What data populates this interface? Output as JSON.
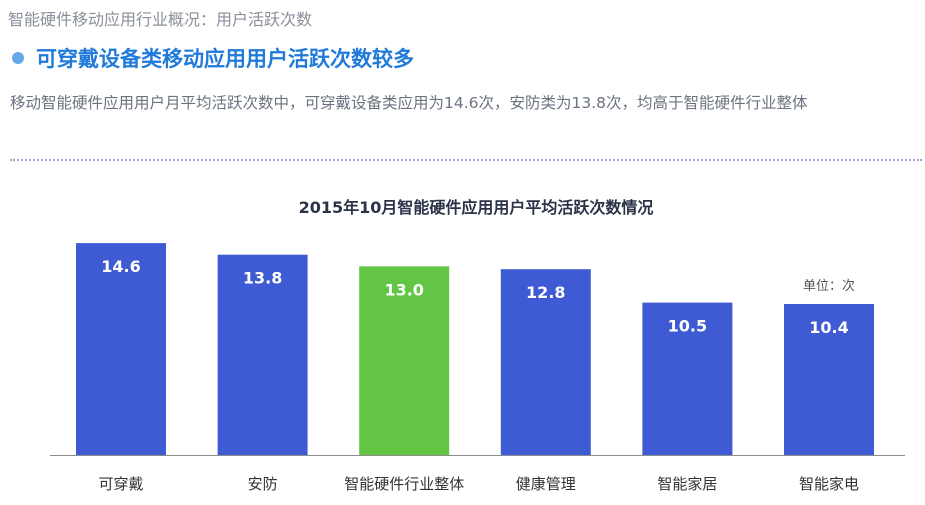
{
  "header": {
    "breadcrumb": "智能硬件移动应用行业概况：用户活跃次数",
    "headline": "可穿戴设备类移动应用用户活跃次数较多",
    "summary": "移动智能硬件应用用户月平均活跃次数中，可穿戴设备类应用为14.6次，安防类为13.8次，均高于智能硬件行业整体"
  },
  "colors": {
    "bar": "#3f5bd4",
    "highlight": "#62c544",
    "axis": "#8c8c8c"
  },
  "chart_data": {
    "type": "bar",
    "title": "2015年10月智能硬件应用用户平均活跃次数情况",
    "unit": "单位：次",
    "categories": [
      "可穿戴",
      "安防",
      "智能硬件行业整体",
      "健康管理",
      "智能家居",
      "智能家电"
    ],
    "values": [
      14.6,
      13.8,
      13.0,
      12.8,
      10.5,
      10.4
    ],
    "value_labels": [
      "14.6",
      "13.8",
      "13.0",
      "12.8",
      "10.5",
      "10.4"
    ],
    "highlight_index": 2,
    "ylim": [
      0,
      15.5
    ],
    "grid": false,
    "legend": "none"
  }
}
